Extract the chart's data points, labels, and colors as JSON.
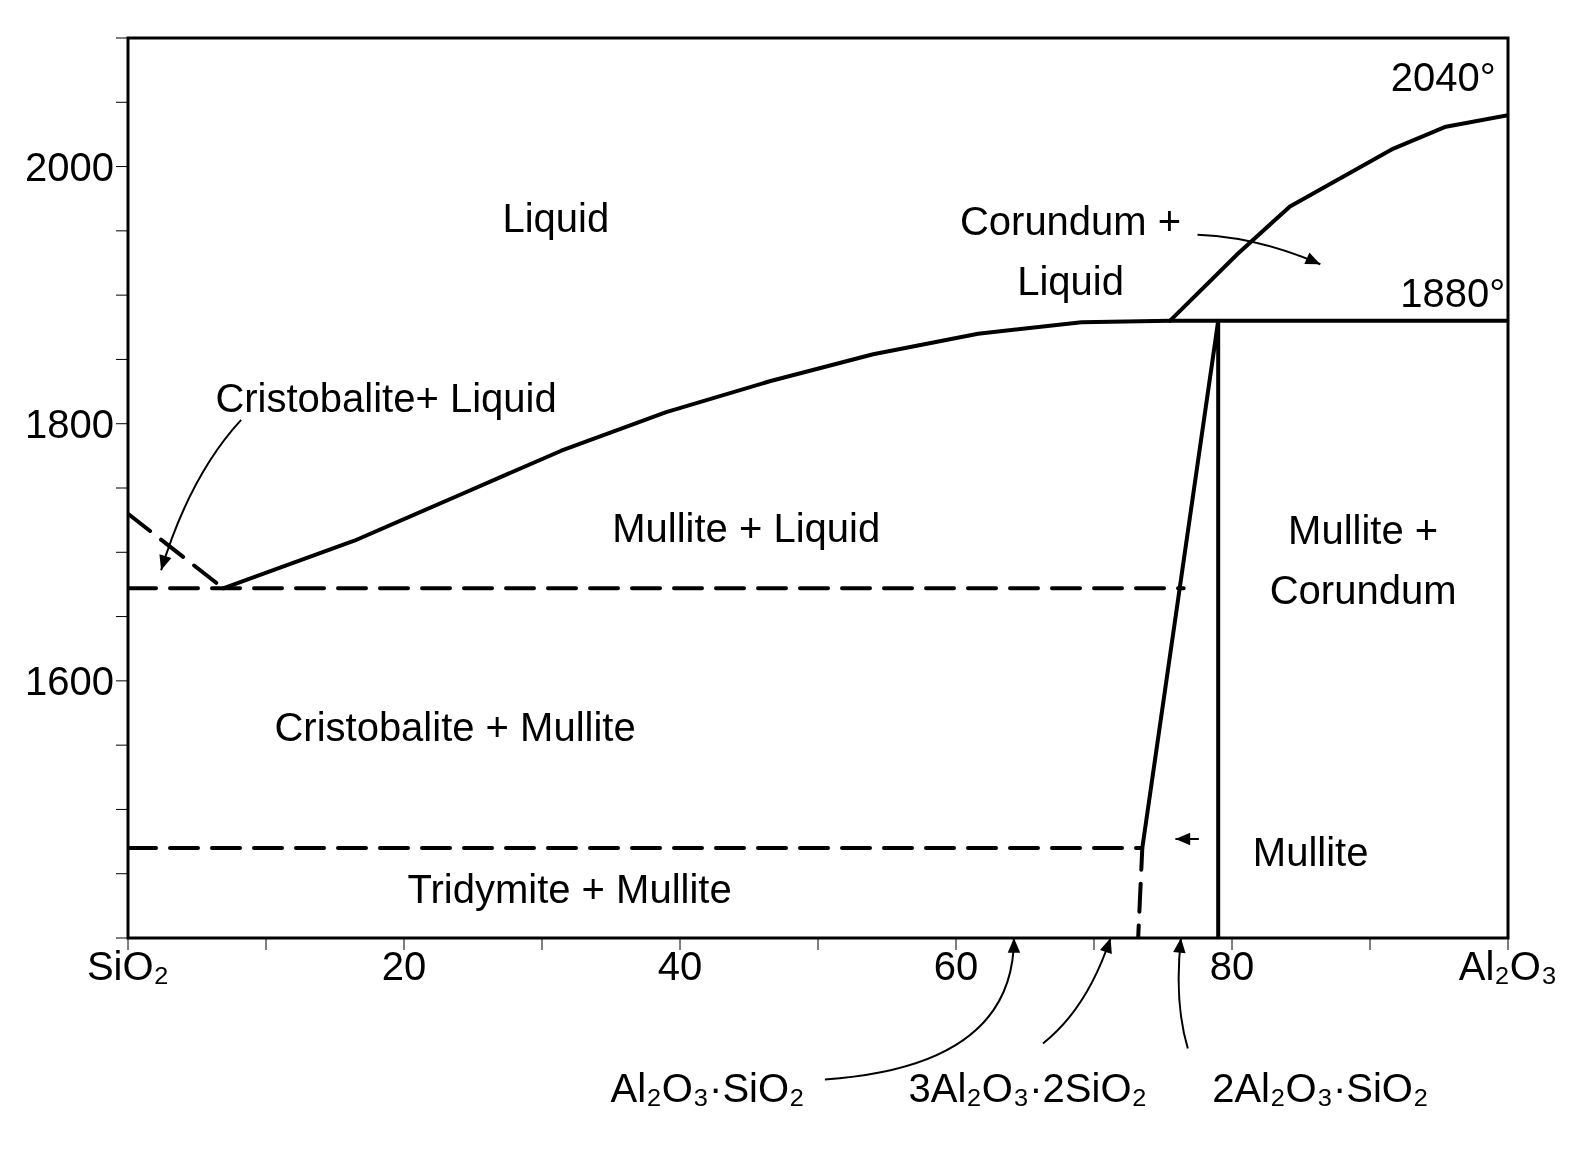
{
  "chart_data": {
    "type": "line",
    "marker": "none",
    "xlim": [
      0,
      100
    ],
    "ylim": [
      1400,
      2100
    ],
    "xticks": [
      {
        "value": 0,
        "label": "SiO₂"
      },
      {
        "value": 10,
        "label": null
      },
      20,
      {
        "value": 30,
        "label": null
      },
      40,
      {
        "value": 50,
        "label": null
      },
      60,
      {
        "value": 70,
        "label": null
      },
      80,
      {
        "value": 90,
        "label": null
      },
      {
        "value": 100,
        "label": "Al₂O₃"
      }
    ],
    "yticks": [
      {
        "value": 1400,
        "label": null
      },
      {
        "value": 1450,
        "label": null
      },
      {
        "value": 1500,
        "label": null
      },
      {
        "value": 1550,
        "label": null
      },
      1600,
      {
        "value": 1650,
        "label": null
      },
      {
        "value": 1700,
        "label": null
      },
      {
        "value": 1750,
        "label": null
      },
      1800,
      {
        "value": 1850,
        "label": null
      },
      {
        "value": 1900,
        "label": null
      },
      {
        "value": 1950,
        "label": null
      },
      2000,
      {
        "value": 2050,
        "label": null
      },
      {
        "value": 2100,
        "label": null
      }
    ],
    "series": [
      {
        "color": "#000000",
        "line_style": "solid",
        "x": [
          6.9,
          16.4,
          23.9,
          31.4,
          39,
          46.5,
          54,
          61.6,
          69.1,
          75.5,
          100
        ],
        "values": [
          1672,
          1709,
          1744,
          1779,
          1809,
          1833,
          1854,
          1870,
          1879,
          1880,
          1880
        ]
      },
      {
        "color": "#000000",
        "line_style": "solid",
        "x": [
          75.5,
          80.4,
          84.2,
          91.7,
          95.5,
          100
        ],
        "values": [
          1880,
          1932,
          1969,
          2014,
          2031,
          2040
        ]
      },
      {
        "color": "#000000",
        "line_style": "solid",
        "x": [
          73.5,
          79,
          79
        ],
        "values": [
          1470,
          1880,
          1400
        ]
      },
      {
        "color": "#000000",
        "line_style": "dashed",
        "x": [
          0,
          6.9
        ],
        "values": [
          1730,
          1672
        ]
      },
      {
        "color": "#000000",
        "line_style": "dashed",
        "x": [
          0,
          76.5
        ],
        "values": [
          1672,
          1672
        ]
      },
      {
        "color": "#000000",
        "line_style": "dashed",
        "x": [
          0,
          73.5,
          73.2
        ],
        "values": [
          1470,
          1470,
          1400
        ]
      }
    ],
    "annotations": [
      "Liquid",
      "Corundum + Liquid",
      "1880°",
      "2040°",
      "Cristobalite+ Liquid",
      "Mullite + Liquid",
      "Mullite + Corundum",
      "Cristobalite + Mullite",
      "Tridymite + Mullite",
      "Mullite",
      "Al₂O₃·SiO₂",
      "3Al₂O₃·2SiO₂",
      "2Al₂O₃·SiO₂"
    ]
  }
}
